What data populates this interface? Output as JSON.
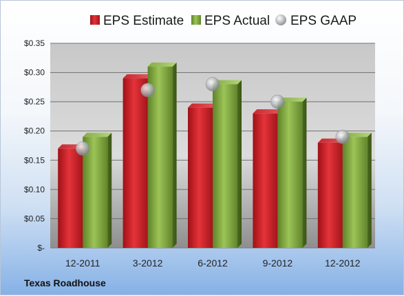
{
  "chart_data": {
    "type": "bar",
    "caption": "Texas Roadhouse",
    "categories": [
      "12-2011",
      "3-2012",
      "6-2012",
      "9-2012",
      "12-2012"
    ],
    "series": [
      {
        "name": "EPS Estimate",
        "kind": "bar",
        "color": "#cc1f26",
        "values": [
          0.17,
          0.29,
          0.24,
          0.23,
          0.18
        ]
      },
      {
        "name": "EPS Actual",
        "kind": "bar",
        "color": "#7fa83c",
        "values": [
          0.19,
          0.31,
          0.28,
          0.25,
          0.19
        ]
      },
      {
        "name": "EPS GAAP",
        "kind": "marker",
        "color": "#b9bcc0",
        "values": [
          0.17,
          0.27,
          0.28,
          0.25,
          0.19
        ]
      }
    ],
    "ylim": [
      0,
      0.35
    ],
    "yticks": [
      0,
      0.05,
      0.1,
      0.15,
      0.2,
      0.25,
      0.3,
      0.35
    ],
    "ytick_labels": [
      "$-",
      "$0.05",
      "$0.10",
      "$0.15",
      "$0.20",
      "$0.25",
      "$0.30",
      "$0.35"
    ],
    "grid": true,
    "legend_position": "top"
  }
}
